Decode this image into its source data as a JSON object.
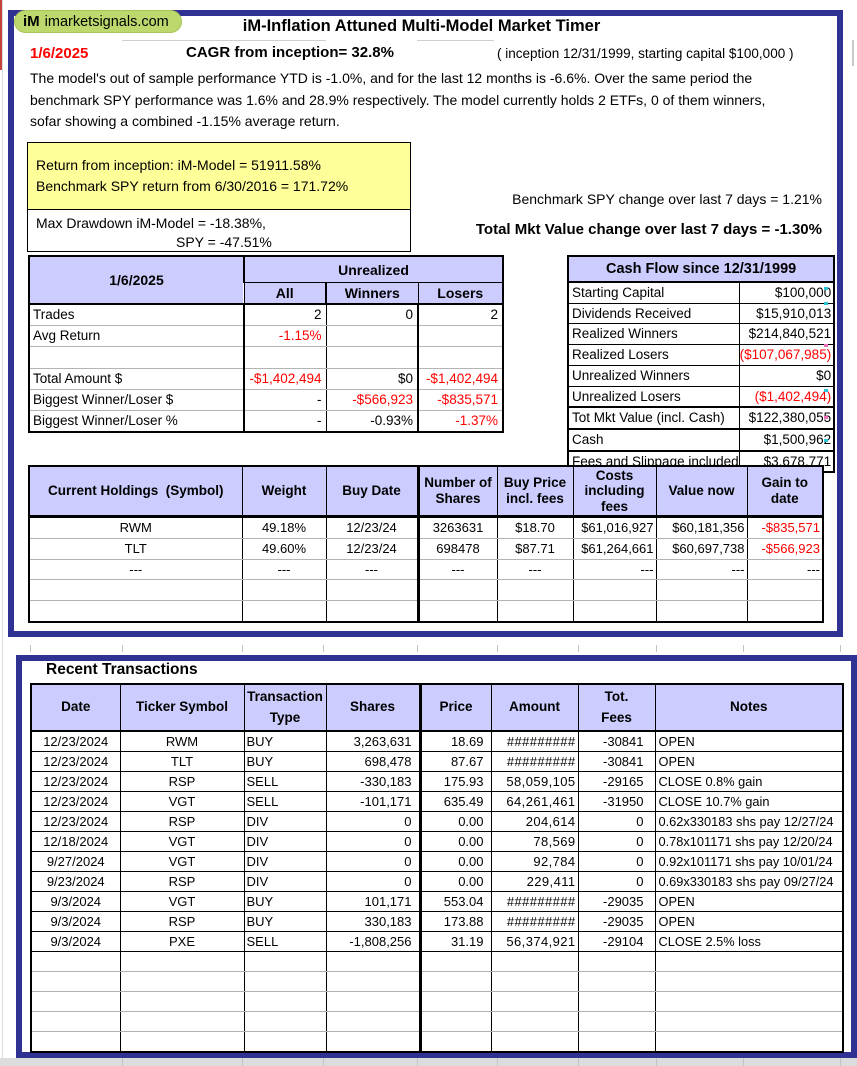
{
  "brand": {
    "logo_prefix": "iM",
    "logo_text": "imarketsignals.com"
  },
  "header": {
    "title": "iM-Inflation Attuned Multi-Model Market Timer",
    "date": "1/6/2025",
    "cagr": "CAGR from inception= 32.8%",
    "inception_note": "( inception 12/31/1999,  starting capital $100,000 )",
    "summary_line1": "The model's out of sample performance YTD is -1.0%, and for the last 12 months is -6.6%. Over the same period the",
    "summary_line2": "benchmark SPY performance was  1.6% and 28.9% respectively. The model currently holds 2 ETFs, 0 of them winners,",
    "summary_line3": "sofar showing a combined -1.15% average return."
  },
  "returns_box": {
    "line1": "Return from inception: iM-Model =  51911.58%",
    "line2": "Benchmark SPY return from 6/30/2016 =  171.72%"
  },
  "drawdown_box": {
    "line1": "Max Drawdown iM-Model =  -18.38%,",
    "line2": "SPY =  -47.51%"
  },
  "week_change": {
    "spy": "Benchmark SPY change over last 7 days =   1.21%",
    "total": "Total Mkt Value change over last 7 days =  -1.30%"
  },
  "unrealized": {
    "date_header": "1/6/2025",
    "group_header": "Unrealized",
    "columns": [
      "All",
      "Winners",
      "Losers"
    ],
    "rows": [
      {
        "cells": [
          "Trades",
          "2",
          "0",
          "2"
        ]
      },
      {
        "cells": [
          "Avg Return",
          "-1.15%",
          "",
          ""
        ],
        "red": [
          0,
          1,
          0,
          0
        ]
      },
      {
        "cells": [
          "",
          "",
          "",
          ""
        ]
      },
      {
        "cells": [
          "Total Amount $",
          "-$1,402,494",
          "$0",
          "-$1,402,494"
        ],
        "red": [
          0,
          1,
          0,
          1
        ]
      },
      {
        "cells": [
          "Biggest Winner/Loser $",
          "-",
          "-$566,923",
          "-$835,571"
        ],
        "red": [
          0,
          0,
          1,
          1
        ]
      },
      {
        "cells": [
          "Biggest Winner/Loser %",
          "-",
          "-0.93%",
          "-1.37%"
        ],
        "red": [
          0,
          0,
          0,
          1
        ]
      }
    ]
  },
  "cashflow": {
    "title": "Cash Flow since 12/31/1999",
    "rows": [
      {
        "cells": [
          "Starting Capital",
          "$100,000"
        ]
      },
      {
        "cells": [
          "Dividends Received",
          "$15,910,013"
        ]
      },
      {
        "cells": [
          "Realized Winners",
          "$214,840,521"
        ]
      },
      {
        "cells": [
          "Realized Losers",
          "($107,067,985)"
        ],
        "red": [
          0,
          1
        ]
      },
      {
        "cells": [
          "Unrealized Winners",
          "$0"
        ]
      },
      {
        "cells": [
          "Unrealized Losers",
          "($1,402,494)"
        ],
        "red": [
          0,
          1
        ]
      },
      {
        "cells": [
          "Tot Mkt Value (incl. Cash)",
          "$122,380,055"
        ],
        "sep": true
      },
      {
        "cells": [
          "Cash",
          "$1,500,962"
        ],
        "sep": true
      },
      {
        "cells": [
          "Fees and Slippage included",
          "$3,678,771"
        ],
        "sep": true
      }
    ]
  },
  "holdings": {
    "headers": [
      "Current Holdings  (Symbol)",
      "Weight",
      "Buy Date",
      "Number of Shares",
      "Buy Price incl. fees",
      "Costs including fees",
      "Value now",
      "Gain to date"
    ],
    "rows": [
      {
        "cells": [
          "RWM",
          "49.18%",
          "12/23/24",
          "3263631",
          "$18.70",
          "$61,016,927",
          "$60,181,356",
          "-$835,571"
        ],
        "red": [
          0,
          0,
          0,
          0,
          0,
          0,
          0,
          1
        ]
      },
      {
        "cells": [
          "TLT",
          "49.60%",
          "12/23/24",
          "698478",
          "$87.71",
          "$61,264,661",
          "$60,697,738",
          "-$566,923"
        ],
        "red": [
          0,
          0,
          0,
          0,
          0,
          0,
          0,
          1
        ]
      },
      {
        "cells": [
          "---",
          "---",
          "---",
          "---",
          "---",
          "---",
          "---",
          "---"
        ]
      },
      {
        "cells": [
          "",
          "",
          "",
          "",
          "",
          "",
          "",
          ""
        ]
      },
      {
        "cells": [
          "",
          "",
          "",
          "",
          "",
          "",
          "",
          ""
        ]
      }
    ]
  },
  "transactions": {
    "title": "Recent Transactions",
    "headers": [
      "Date",
      "Ticker Symbol",
      "Transaction Type",
      "Shares",
      "Price",
      "Amount",
      "Tot.\nFees",
      "Notes"
    ],
    "rows": [
      {
        "cells": [
          "12/23/2024",
          "RWM",
          "BUY",
          "3,263,631",
          "18.69",
          "#########",
          "-30841",
          "OPEN"
        ]
      },
      {
        "cells": [
          "12/23/2024",
          "TLT",
          "BUY",
          "698,478",
          "87.67",
          "#########",
          "-30841",
          "OPEN"
        ]
      },
      {
        "cells": [
          "12/23/2024",
          "RSP",
          "SELL",
          "-330,183",
          "175.93",
          "58,059,105",
          "-29165",
          "CLOSE 0.8% gain"
        ]
      },
      {
        "cells": [
          "12/23/2024",
          "VGT",
          "SELL",
          "-101,171",
          "635.49",
          "64,261,461",
          "-31950",
          "CLOSE 10.7% gain"
        ]
      },
      {
        "cells": [
          "12/23/2024",
          "RSP",
          "DIV",
          "0",
          "0.00",
          "204,614",
          "0",
          "0.62x330183 shs pay 12/27/24"
        ]
      },
      {
        "cells": [
          "12/18/2024",
          "VGT",
          "DIV",
          "0",
          "0.00",
          "78,569",
          "0",
          "0.78x101171 shs pay 12/20/24"
        ]
      },
      {
        "cells": [
          "9/27/2024",
          "VGT",
          "DIV",
          "0",
          "0.00",
          "92,784",
          "0",
          "0.92x101171 shs pay 10/01/24"
        ]
      },
      {
        "cells": [
          "9/23/2024",
          "RSP",
          "DIV",
          "0",
          "0.00",
          "229,411",
          "0",
          "0.69x330183 shs pay 09/27/24"
        ]
      },
      {
        "cells": [
          "9/3/2024",
          "VGT",
          "BUY",
          "101,171",
          "553.04",
          "#########",
          "-29035",
          "OPEN"
        ]
      },
      {
        "cells": [
          "9/3/2024",
          "RSP",
          "BUY",
          "330,183",
          "173.88",
          "#########",
          "-29035",
          "OPEN"
        ]
      },
      {
        "cells": [
          "9/3/2024",
          "PXE",
          "SELL",
          "-1,808,256",
          "31.19",
          "56,374,921",
          "-29104",
          "CLOSE 2.5% loss"
        ]
      },
      {
        "cells": [
          "",
          "",
          "",
          "",
          "",
          "",
          "",
          ""
        ]
      },
      {
        "cells": [
          "",
          "",
          "",
          "",
          "",
          "",
          "",
          ""
        ]
      },
      {
        "cells": [
          "",
          "",
          "",
          "",
          "",
          "",
          "",
          ""
        ]
      },
      {
        "cells": [
          "",
          "",
          "",
          "",
          "",
          "",
          "",
          ""
        ]
      },
      {
        "cells": [
          "",
          "",
          "",
          "",
          "",
          "",
          "",
          ""
        ]
      }
    ]
  },
  "colors": {
    "accent_border": "#2f3193",
    "table_header_fill": "#ccccff",
    "highlight_fill": "#ffff99",
    "negative_text": "#ff0000",
    "logo_fill": "#bdd96d"
  }
}
